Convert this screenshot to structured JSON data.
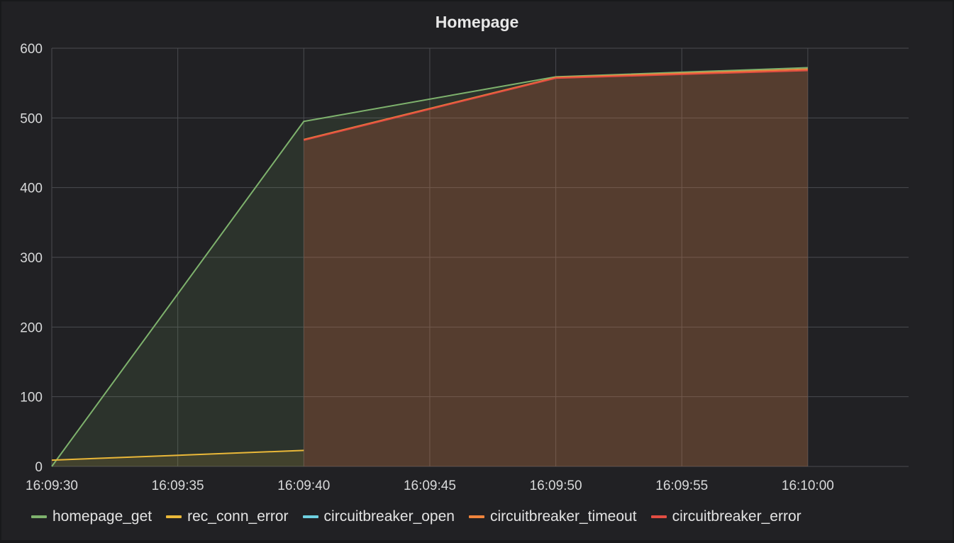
{
  "panel": {
    "title": "Homepage"
  },
  "chart_data": {
    "type": "area",
    "title": "Homepage",
    "xlabel": "",
    "ylabel": "",
    "x_ticks": [
      "16:09:30",
      "16:09:35",
      "16:09:40",
      "16:09:45",
      "16:09:50",
      "16:09:55",
      "16:10:00"
    ],
    "xlim": [
      "16:09:30",
      "16:10:04"
    ],
    "y_ticks": [
      0,
      100,
      200,
      300,
      400,
      500,
      600
    ],
    "ylim": [
      0,
      600
    ],
    "grid": true,
    "legend_position": "bottom",
    "series": [
      {
        "name": "homepage_get",
        "color": "#7eb26d",
        "points": [
          [
            "16:09:30",
            0
          ],
          [
            "16:09:40",
            495
          ],
          [
            "16:09:50",
            559
          ],
          [
            "16:10:00",
            572
          ]
        ]
      },
      {
        "name": "rec_conn_error",
        "color": "#eab839",
        "points": [
          [
            "16:09:30",
            9
          ],
          [
            "16:09:40",
            23
          ]
        ]
      },
      {
        "name": "circuitbreaker_open",
        "color": "#6ed0e0",
        "points": []
      },
      {
        "name": "circuitbreaker_timeout",
        "color": "#ef843c",
        "points": [
          [
            "16:09:40",
            469
          ],
          [
            "16:09:50",
            558
          ],
          [
            "16:10:00",
            570
          ]
        ]
      },
      {
        "name": "circuitbreaker_error",
        "color": "#e24d42",
        "points": [
          [
            "16:09:40",
            468
          ],
          [
            "16:09:50",
            557
          ],
          [
            "16:10:00",
            568
          ]
        ]
      }
    ]
  }
}
